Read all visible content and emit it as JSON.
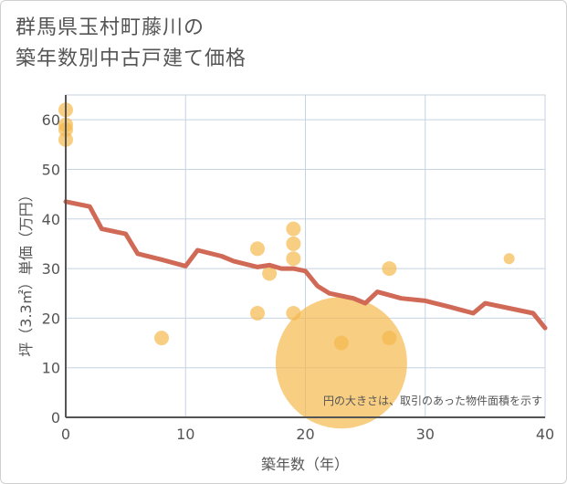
{
  "chart_data": {
    "type": "scatter",
    "title_line1": "群馬県玉村町藤川の",
    "title_line2": "築年数別中古戸建て価格",
    "xlabel": "築年数（年）",
    "ylabel": "坪（3.3㎡）単価（万円）",
    "xlim": [
      0,
      40
    ],
    "ylim": [
      0,
      65
    ],
    "xticks": [
      0,
      10,
      20,
      30,
      40
    ],
    "yticks": [
      0,
      10,
      20,
      30,
      40,
      50,
      60
    ],
    "grid": true,
    "note": "円の大きさは、取引のあった物件面積を示す",
    "colors": {
      "point": "#f5b94e",
      "line": "#d06a57",
      "grid": "#c5d3e2",
      "axis": "#555555"
    },
    "points": [
      {
        "x": 0,
        "y": 62,
        "size": 1
      },
      {
        "x": 0,
        "y": 59,
        "size": 1
      },
      {
        "x": 0,
        "y": 58,
        "size": 1
      },
      {
        "x": 0,
        "y": 56,
        "size": 1
      },
      {
        "x": 8,
        "y": 16,
        "size": 1
      },
      {
        "x": 16,
        "y": 34,
        "size": 1
      },
      {
        "x": 16,
        "y": 21,
        "size": 1
      },
      {
        "x": 17,
        "y": 29,
        "size": 1
      },
      {
        "x": 19,
        "y": 38,
        "size": 1
      },
      {
        "x": 19,
        "y": 35,
        "size": 1
      },
      {
        "x": 19,
        "y": 32,
        "size": 1
      },
      {
        "x": 19,
        "y": 21,
        "size": 1
      },
      {
        "x": 23,
        "y": 15,
        "size": 1
      },
      {
        "x": 23,
        "y": 11,
        "size": 9
      },
      {
        "x": 27,
        "y": 30,
        "size": 1
      },
      {
        "x": 27,
        "y": 16,
        "size": 1
      },
      {
        "x": 37,
        "y": 32,
        "size": 0.75
      }
    ],
    "trend": {
      "x": [
        0,
        2,
        3,
        5,
        6,
        8,
        10,
        11,
        13,
        14,
        16,
        17,
        18,
        19,
        20,
        21,
        22,
        24,
        25,
        26,
        28,
        30,
        32,
        34,
        35,
        37,
        39,
        40
      ],
      "y": [
        43.5,
        42.5,
        38,
        37,
        33,
        31.8,
        30.5,
        33.7,
        32.5,
        31.5,
        30.3,
        30.7,
        30,
        30,
        29.5,
        26.5,
        25,
        24,
        23,
        25.3,
        24,
        23.5,
        22.3,
        21,
        23,
        22,
        21,
        18
      ]
    }
  }
}
